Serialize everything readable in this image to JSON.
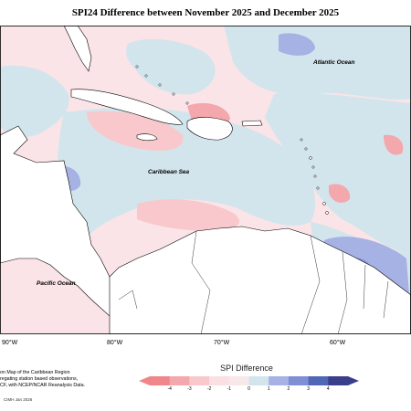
{
  "title": "SPI24 Difference between November 2025 and December 2025",
  "map_labels": {
    "atlantic": "Atlantic Ocean",
    "caribbean": "Caribbean Sea",
    "pacific": "Pacific Ocean"
  },
  "longitude_ticks": [
    "90°W",
    "80°W",
    "70°W",
    "60°W"
  ],
  "footnote": [
    "on Map of the Caribbean Region",
    "regating station based observations,",
    "CF, with NCEP/NCAR Reanalysis Data."
  ],
  "credit": "CIMH Jan 2026",
  "legend": {
    "title": "SPI Difference",
    "ticks": [
      "-4",
      "-3",
      "-2",
      "-1",
      "0",
      "1",
      "2",
      "3",
      "4"
    ],
    "colors": [
      "#f0868b",
      "#f4a7ac",
      "#f8c8cc",
      "#fbe0e3",
      "#f8e8ea",
      "#d3e5ec",
      "#a6b2e4",
      "#7f8fd6",
      "#4f67b5",
      "#3a3f8c"
    ]
  }
}
